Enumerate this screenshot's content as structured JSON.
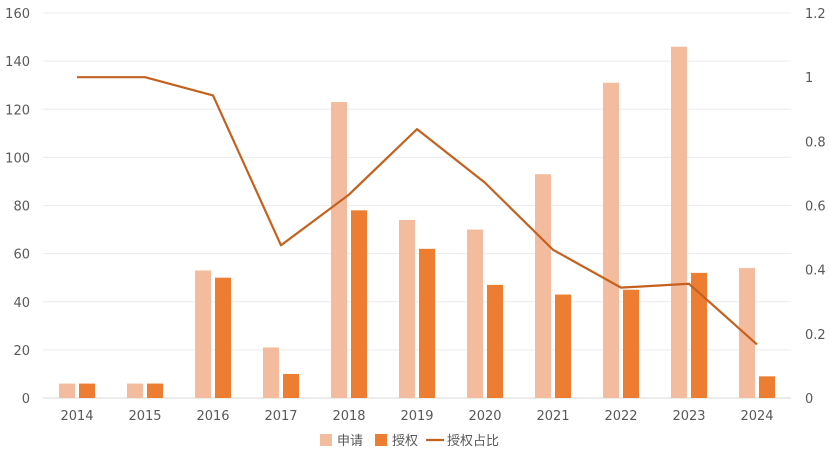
{
  "chart_data": {
    "type": "bar",
    "title": "",
    "categories": [
      "2014",
      "2015",
      "2016",
      "2017",
      "2018",
      "2019",
      "2020",
      "2021",
      "2022",
      "2023",
      "2024"
    ],
    "series": [
      {
        "name": "申请",
        "type": "bar",
        "axis": "left",
        "color": "#F4BC9F",
        "values": [
          6,
          6,
          53,
          21,
          123,
          74,
          70,
          93,
          131,
          146,
          54
        ]
      },
      {
        "name": "授权",
        "type": "bar",
        "axis": "left",
        "color": "#ED7D31",
        "values": [
          6,
          6,
          50,
          10,
          78,
          62,
          47,
          43,
          45,
          52,
          9
        ]
      },
      {
        "name": "授权占比",
        "type": "line",
        "axis": "right",
        "color": "#C5611E",
        "values": [
          1,
          1,
          0.943,
          0.476,
          0.634,
          0.838,
          0.671,
          0.462,
          0.344,
          0.356,
          0.167
        ]
      }
    ],
    "ylim": [
      0,
      160
    ],
    "yticks": [
      "0",
      "20",
      "40",
      "60",
      "80",
      "100",
      "120",
      "140",
      "160"
    ],
    "y2lim": [
      0,
      1.2
    ],
    "y2ticks": [
      "0",
      "0.2",
      "0.4",
      "0.6",
      "0.8",
      "1",
      "1.2"
    ],
    "grid": true,
    "legend": "bottom"
  }
}
